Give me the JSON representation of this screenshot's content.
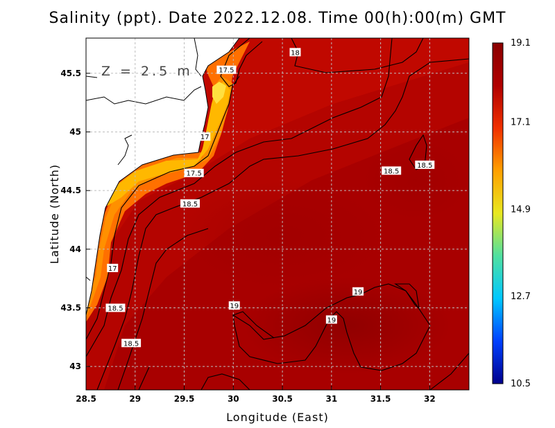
{
  "title": "Salinity (ppt). Date 2022.12.08. Time 00(h):00(m) GMT",
  "depth_label": "Z = 2.5 m",
  "chart_data": {
    "type": "heatmap",
    "variable": "Salinity",
    "units": "ppt",
    "xlabel": "Longitude (East)",
    "ylabel": "Latitude (North)",
    "xlim": [
      28.5,
      32.4
    ],
    "ylim": [
      42.8,
      45.8
    ],
    "x_ticks": [
      "28.5",
      "29",
      "29.5",
      "30",
      "30.5",
      "31",
      "31.5",
      "32"
    ],
    "y_ticks": [
      "43",
      "43.5",
      "44",
      "44.5",
      "45",
      "45.5"
    ],
    "grid": true,
    "colorbar": {
      "min": 10.5,
      "max": 19.1,
      "tick_labels": [
        "19.1",
        "17.1",
        "14.9",
        "12.7",
        "10.5"
      ],
      "tick_values": [
        19.1,
        17.1,
        14.9,
        12.7,
        10.5
      ],
      "colors": [
        "#00008c",
        "#0040ff",
        "#00c8ff",
        "#50e0a0",
        "#e8e820",
        "#ffa000",
        "#f03000",
        "#b00000",
        "#8a0000"
      ]
    },
    "contour_labels": [
      {
        "text": "18",
        "lon": 30.63,
        "lat": 45.68
      },
      {
        "text": "17.5",
        "lon": 29.93,
        "lat": 45.53
      },
      {
        "text": "17",
        "lon": 29.71,
        "lat": 44.96
      },
      {
        "text": "17.5",
        "lon": 29.6,
        "lat": 44.65
      },
      {
        "text": "18.5",
        "lon": 29.56,
        "lat": 44.39
      },
      {
        "text": "18.5",
        "lon": 31.61,
        "lat": 44.67
      },
      {
        "text": "18.5",
        "lon": 31.95,
        "lat": 44.72
      },
      {
        "text": "17",
        "lon": 28.77,
        "lat": 43.84
      },
      {
        "text": "18.5",
        "lon": 28.8,
        "lat": 43.5
      },
      {
        "text": "18.5",
        "lon": 28.96,
        "lat": 43.2
      },
      {
        "text": "19",
        "lon": 30.01,
        "lat": 43.52
      },
      {
        "text": "19",
        "lon": 31.27,
        "lat": 43.64
      },
      {
        "text": "19",
        "lon": 31.0,
        "lat": 43.4
      }
    ]
  }
}
